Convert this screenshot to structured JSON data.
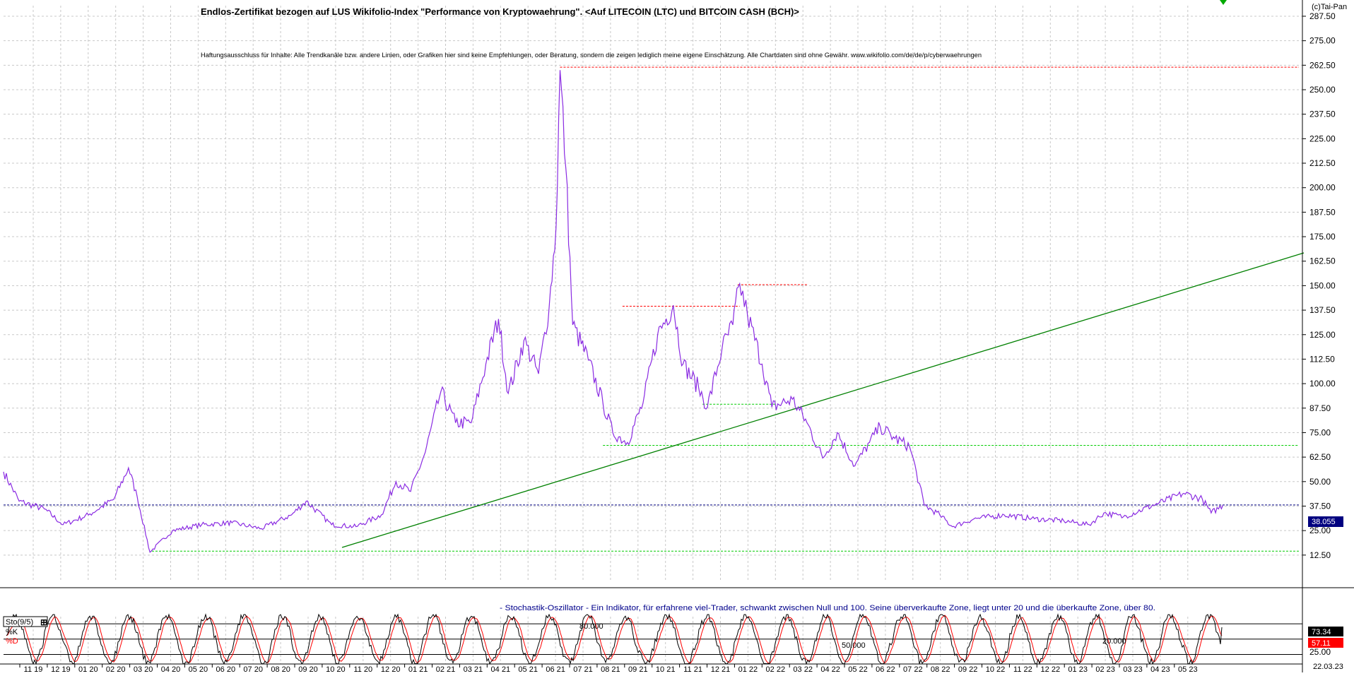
{
  "title": "Endlos-Zertifikat bezogen auf LUS Wikifolio-Index \"Performance von Kryptowaehrung\". <Auf LITECOIN (LTC) und BITCOIN CASH (BCH)>",
  "disclaimer": "Haftungsausschluss für Inhalte: Alle Trendkanäle bzw. andere Linien, oder Grafiken hier sind keine Empfehlungen, oder Beratung, sondern die zeigen lediglich meine eigene Einschätzung. Alle Chartdaten sind ohne Gewähr. www.wikifolio.com/de/de/p/cyberwaehrungen",
  "copyright": "(c)Tai-Pan",
  "colors": {
    "price_line": "#8a2be2",
    "trendline": "#008000",
    "resistance": "#ff0000",
    "support": "#00cc00",
    "current_level": "#000080",
    "k_line": "#000000",
    "d_line": "#ff0000",
    "grid": "#c8c8c8",
    "current_label_bg": "#000080",
    "k_label_bg": "#000000",
    "d_label_bg": "#ff0000"
  },
  "chart_data": [
    {
      "type": "line",
      "name": "price",
      "ylim": [
        0,
        300
      ],
      "y_ticks": [
        "12.50",
        "25.00",
        "37.50",
        "50.00",
        "62.50",
        "75.00",
        "87.50",
        "100.00",
        "112.50",
        "125.00",
        "137.50",
        "150.00",
        "162.50",
        "175.00",
        "187.50",
        "200.00",
        "212.50",
        "225.00",
        "237.50",
        "250.00",
        "262.50",
        "275.00",
        "287.50"
      ],
      "x_labels": [
        "11 19",
        "12 19",
        "01 20",
        "02 20",
        "03 20",
        "04 20",
        "05 20",
        "06 20",
        "07 20",
        "08 20",
        "09 20",
        "10 20",
        "11 20",
        "12 20",
        "01 21",
        "02 21",
        "03 21",
        "04 21",
        "05 21",
        "06 21",
        "07 21",
        "08 21",
        "09 21",
        "10 21",
        "11 21",
        "12 21",
        "01 22",
        "02 22",
        "03 22",
        "04 22",
        "05 22",
        "06 22",
        "07 22",
        "08 22",
        "09 22",
        "10 22",
        "11 22",
        "12 22",
        "01 23",
        "02 23",
        "03 23",
        "04 23",
        "05 23"
      ],
      "last_date": "22.03.23",
      "current_value": "38.055",
      "series_keypoints": [
        [
          "2019-10-20",
          55
        ],
        [
          "2019-11-05",
          40
        ],
        [
          "2019-12-01",
          36
        ],
        [
          "2019-12-20",
          28
        ],
        [
          "2020-01-15",
          33
        ],
        [
          "2020-02-10",
          41
        ],
        [
          "2020-02-25",
          57
        ],
        [
          "2020-03-05",
          42
        ],
        [
          "2020-03-18",
          14
        ],
        [
          "2020-04-10",
          25
        ],
        [
          "2020-05-10",
          28
        ],
        [
          "2020-06-10",
          29
        ],
        [
          "2020-07-10",
          26
        ],
        [
          "2020-08-10",
          33
        ],
        [
          "2020-08-25",
          40
        ],
        [
          "2020-09-20",
          28
        ],
        [
          "2020-10-15",
          27
        ],
        [
          "2020-11-10",
          33
        ],
        [
          "2020-11-25",
          50
        ],
        [
          "2020-12-10",
          45
        ],
        [
          "2020-12-25",
          65
        ],
        [
          "2021-01-10",
          96
        ],
        [
          "2021-01-25",
          80
        ],
        [
          "2021-02-10",
          80
        ],
        [
          "2021-02-25",
          110
        ],
        [
          "2021-03-10",
          133
        ],
        [
          "2021-03-20",
          95
        ],
        [
          "2021-04-05",
          122
        ],
        [
          "2021-04-20",
          105
        ],
        [
          "2021-05-01",
          140
        ],
        [
          "2021-05-08",
          180
        ],
        [
          "2021-05-12",
          260
        ],
        [
          "2021-05-18",
          210
        ],
        [
          "2021-05-25",
          130
        ],
        [
          "2021-06-10",
          112
        ],
        [
          "2021-06-25",
          90
        ],
        [
          "2021-07-05",
          75
        ],
        [
          "2021-07-20",
          70
        ],
        [
          "2021-08-05",
          90
        ],
        [
          "2021-08-20",
          125
        ],
        [
          "2021-09-05",
          140
        ],
        [
          "2021-09-15",
          110
        ],
        [
          "2021-10-01",
          98
        ],
        [
          "2021-10-10",
          88
        ],
        [
          "2021-10-25",
          118
        ],
        [
          "2021-11-05",
          130
        ],
        [
          "2021-11-12",
          151
        ],
        [
          "2021-11-20",
          135
        ],
        [
          "2021-12-05",
          110
        ],
        [
          "2021-12-15",
          88
        ],
        [
          "2022-01-05",
          92
        ],
        [
          "2022-01-20",
          80
        ],
        [
          "2022-02-05",
          62
        ],
        [
          "2022-02-20",
          75
        ],
        [
          "2022-03-10",
          58
        ],
        [
          "2022-03-25",
          70
        ],
        [
          "2022-04-05",
          78
        ],
        [
          "2022-04-20",
          72
        ],
        [
          "2022-05-05",
          68
        ],
        [
          "2022-05-12",
          55
        ],
        [
          "2022-05-20",
          38
        ],
        [
          "2022-06-05",
          33
        ],
        [
          "2022-06-18",
          27
        ],
        [
          "2022-07-10",
          31
        ],
        [
          "2022-08-10",
          33
        ],
        [
          "2022-09-10",
          31
        ],
        [
          "2022-10-10",
          30
        ],
        [
          "2022-11-05",
          28
        ],
        [
          "2022-11-20",
          34
        ],
        [
          "2022-12-10",
          32
        ],
        [
          "2023-01-10",
          38
        ],
        [
          "2023-02-10",
          44
        ],
        [
          "2023-03-01",
          41
        ],
        [
          "2023-03-10",
          34
        ],
        [
          "2023-03-22",
          38
        ]
      ]
    },
    {
      "type": "line",
      "name": "stochastic",
      "panel_label": "Sto(9/5)",
      "legend": [
        "%K",
        "%D"
      ],
      "ylim": [
        0,
        100
      ],
      "y_ticks": [
        "25.00"
      ],
      "levels": [
        "80.000",
        "50.000",
        "20.000"
      ],
      "k_value": "73.34",
      "d_value": "57.11",
      "description": "- Stochastik-Oszillator - Ein Indikator, für erfahrene viel-Trader, schwankt zwischen Null und 100. Seine überverkaufte Zone, liegt unter 20 und die überkaufte Zone, über 80."
    }
  ]
}
